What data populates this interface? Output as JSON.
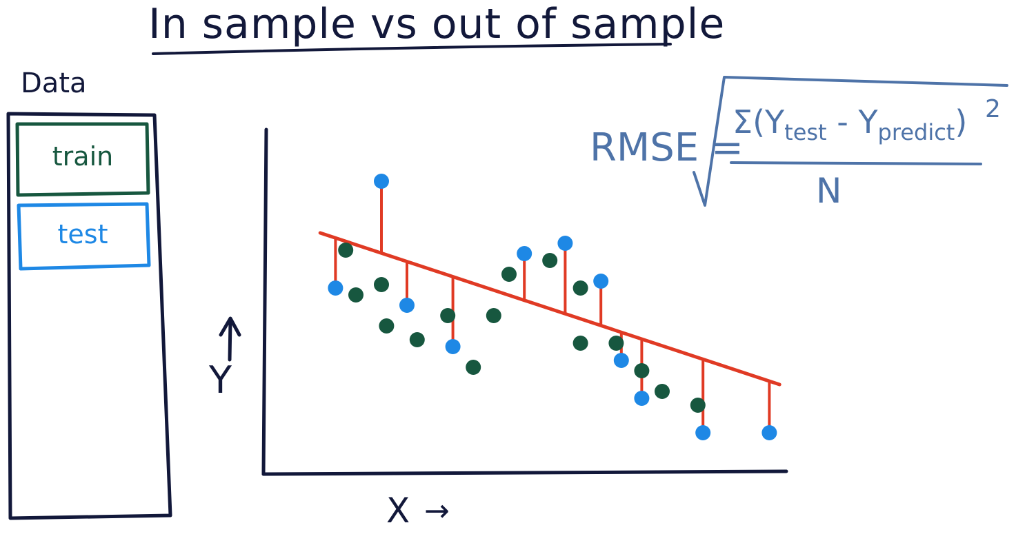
{
  "title": "In sample vs out of sample",
  "data_panel": {
    "label": "Data",
    "train_label": "train",
    "test_label": "test"
  },
  "axes": {
    "y_label": "Y",
    "y_arrow": "↑",
    "x_label": "X",
    "x_arrow": "→"
  },
  "formula": {
    "lhs": "RMSE =",
    "sum_symbol": "Σ",
    "y_test": "Y",
    "y_test_sub": "test",
    "minus": " - ",
    "y_predict": "Y",
    "y_predict_sub": "predict",
    "exponent": "2",
    "denominator": "N"
  },
  "colors": {
    "ink": "#12183a",
    "train": "#17573f",
    "test": "#1e88e5",
    "regression": "#e03a24",
    "formula": "#4e73a8"
  },
  "chart_data": {
    "type": "scatter",
    "title": "",
    "xlabel": "X",
    "ylabel": "Y",
    "xlim": [
      0,
      100
    ],
    "ylim": [
      0,
      100
    ],
    "grid": false,
    "regression_line": {
      "x": [
        8,
        98
      ],
      "y": [
        70,
        26
      ]
    },
    "series": [
      {
        "name": "train",
        "points": [
          [
            13,
            65
          ],
          [
            15,
            52
          ],
          [
            20,
            55
          ],
          [
            21,
            43
          ],
          [
            27,
            39
          ],
          [
            33,
            46
          ],
          [
            38,
            31
          ],
          [
            42,
            46
          ],
          [
            45,
            58
          ],
          [
            53,
            62
          ],
          [
            59,
            54
          ],
          [
            59,
            38
          ],
          [
            66,
            38
          ],
          [
            71,
            30
          ],
          [
            75,
            24
          ],
          [
            82,
            20
          ]
        ]
      },
      {
        "name": "test",
        "points": [
          [
            11,
            54
          ],
          [
            20,
            85
          ],
          [
            25,
            49
          ],
          [
            34,
            37
          ],
          [
            48,
            64
          ],
          [
            56,
            67
          ],
          [
            63,
            56
          ],
          [
            67,
            33
          ],
          [
            71,
            22
          ],
          [
            83,
            12
          ],
          [
            96,
            12
          ]
        ],
        "residual_to_line": true
      }
    ]
  }
}
